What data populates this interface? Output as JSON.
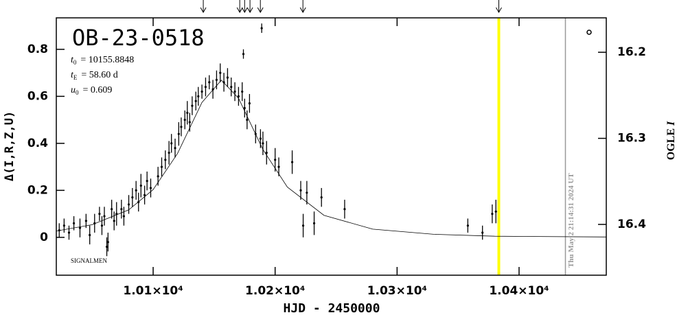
{
  "chart_data": {
    "type": "scatter",
    "title": "OB-23-0518",
    "params": [
      {
        "symbol": "t",
        "sub": "0",
        "text": "= 10155.8848"
      },
      {
        "symbol": "t",
        "sub": "E",
        "text": "= 58.60 d"
      },
      {
        "symbol": "u",
        "sub": "0",
        "text": "= 0.609"
      }
    ],
    "annotation": "SIGNALMEN",
    "timestamp": "Thu May  2 21:14:31 2024 UT",
    "xlabel": "HJD - 2450000",
    "ylabel": "Δ(I,R,Z,U)",
    "y2label": {
      "text": "OGLE",
      "italic": "I"
    },
    "xlim": [
      10020.6,
      10471.5
    ],
    "ylim": [
      -0.161,
      0.934
    ],
    "y2lim": [
      16.459,
      16.16
    ],
    "xticks": [
      {
        "value": 10100,
        "label": "1.01×10⁴"
      },
      {
        "value": 10200,
        "label": "1.02×10⁴"
      },
      {
        "value": 10300,
        "label": "1.03×10⁴"
      },
      {
        "value": 10400,
        "label": "1.04×10⁴"
      }
    ],
    "yticks": [
      0,
      0.2,
      0.4,
      0.6,
      0.8
    ],
    "y2ticks": [
      16.2,
      16.3,
      16.4
    ],
    "series": [
      {
        "color": "#000000",
        "x": [
          10023,
          10027,
          10031,
          10035,
          10040,
          10045,
          10048,
          10052,
          10056,
          10058,
          10060,
          10062,
          10063,
          10066,
          10068,
          10070,
          10074,
          10076,
          10080,
          10083,
          10086,
          10088,
          10090,
          10093,
          10095,
          10098,
          10104,
          10107,
          10110,
          10113,
          10115,
          10118,
          10121,
          10123,
          10126,
          10128,
          10130,
          10132,
          10135,
          10137,
          10140,
          10143,
          10146,
          10149,
          10152,
          10155,
          10158,
          10161,
          10164,
          10167,
          10170,
          10173,
          10174,
          10175,
          10177,
          10179,
          10184,
          10188,
          10189,
          10190,
          10193,
          10200,
          10203,
          10214,
          10221,
          10223,
          10226,
          10232,
          10238,
          10257,
          10358,
          10370,
          10378,
          10381
        ],
        "values": [
          0.03,
          0.05,
          0.02,
          0.06,
          0.04,
          0.07,
          0.01,
          0.06,
          0.1,
          0.05,
          0.09,
          -0.04,
          -0.02,
          0.12,
          0.07,
          0.1,
          0.12,
          0.09,
          0.14,
          0.17,
          0.2,
          0.15,
          0.22,
          0.18,
          0.24,
          0.21,
          0.26,
          0.3,
          0.33,
          0.36,
          0.4,
          0.38,
          0.44,
          0.47,
          0.5,
          0.53,
          0.49,
          0.56,
          0.58,
          0.6,
          0.62,
          0.64,
          0.66,
          0.63,
          0.67,
          0.7,
          0.66,
          0.68,
          0.64,
          0.62,
          0.6,
          0.62,
          0.78,
          0.55,
          0.5,
          0.57,
          0.44,
          0.42,
          0.89,
          0.4,
          0.36,
          0.33,
          0.3,
          0.32,
          0.2,
          0.05,
          0.19,
          0.06,
          0.17,
          0.12,
          0.05,
          0.02,
          0.1,
          0.11
        ],
        "errors": [
          0.03,
          0.03,
          0.03,
          0.03,
          0.04,
          0.03,
          0.04,
          0.04,
          0.03,
          0.04,
          0.04,
          0.04,
          0.04,
          0.04,
          0.04,
          0.05,
          0.04,
          0.04,
          0.04,
          0.04,
          0.04,
          0.04,
          0.05,
          0.04,
          0.04,
          0.04,
          0.04,
          0.04,
          0.04,
          0.05,
          0.04,
          0.04,
          0.05,
          0.04,
          0.04,
          0.05,
          0.04,
          0.04,
          0.04,
          0.04,
          0.03,
          0.04,
          0.03,
          0.04,
          0.04,
          0.04,
          0.04,
          0.04,
          0.04,
          0.04,
          0.04,
          0.04,
          0.02,
          0.04,
          0.04,
          0.04,
          0.04,
          0.04,
          0.02,
          0.05,
          0.05,
          0.05,
          0.04,
          0.05,
          0.04,
          0.05,
          0.05,
          0.05,
          0.04,
          0.04,
          0.03,
          0.03,
          0.04,
          0.05
        ]
      }
    ],
    "model": {
      "color": "#000000",
      "x": [
        10020.6,
        10050,
        10080,
        10100,
        10120,
        10140,
        10155.9,
        10170,
        10190,
        10210,
        10240,
        10280,
        10330,
        10380,
        10471.5
      ],
      "values": [
        0.027,
        0.054,
        0.117,
        0.203,
        0.357,
        0.574,
        0.669,
        0.592,
        0.374,
        0.214,
        0.094,
        0.035,
        0.013,
        0.005,
        0.0015
      ]
    },
    "arrows": [
      10141.1,
      10171,
      10175,
      10179.4,
      10187.9,
      10222.8,
      10383.4
    ],
    "current": {
      "x": 10383.4,
      "color": "#ffff00"
    },
    "now": {
      "x": 10438,
      "color": "#999999"
    }
  }
}
